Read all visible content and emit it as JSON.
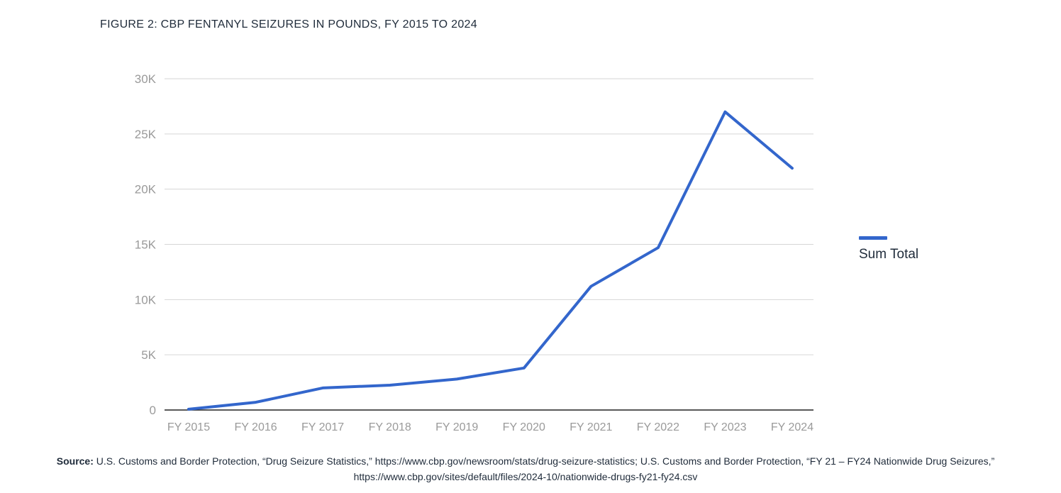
{
  "figure_title": "FIGURE 2: CBP FENTANYL SEIZURES IN POUNDS, FY 2015 TO 2024",
  "source": {
    "label": "Source:",
    "text": "U.S. Customs and Border Protection, “Drug Seizure Statistics,” https://www.cbp.gov/newsroom/stats/drug-seizure-statistics; U.S. Customs and Border Protection, “FY 21 – FY24 Nationwide Drug Seizures,” https://www.cbp.gov/sites/default/files/2024-10/nationwide-drugs-fy21-fy24.csv"
  },
  "chart_data": {
    "type": "line",
    "title": "",
    "xlabel": "",
    "ylabel": "",
    "categories": [
      "FY 2015",
      "FY 2016",
      "FY 2017",
      "FY 2018",
      "FY 2019",
      "FY 2020",
      "FY 2021",
      "FY 2022",
      "FY 2023",
      "FY 2024"
    ],
    "series": [
      {
        "name": "Sum Total",
        "color": "#3366cc",
        "values": [
          70,
          700,
          2000,
          2250,
          2800,
          3800,
          11200,
          14700,
          27000,
          21900
        ]
      }
    ],
    "yticks": [
      {
        "value": 0,
        "label": "0"
      },
      {
        "value": 5000,
        "label": "5K"
      },
      {
        "value": 10000,
        "label": "10K"
      },
      {
        "value": 15000,
        "label": "15K"
      },
      {
        "value": 20000,
        "label": "20K"
      },
      {
        "value": 25000,
        "label": "25K"
      },
      {
        "value": 30000,
        "label": "30K"
      }
    ],
    "ylim": [
      0,
      30000
    ],
    "grid": true,
    "legend_position": "right"
  }
}
